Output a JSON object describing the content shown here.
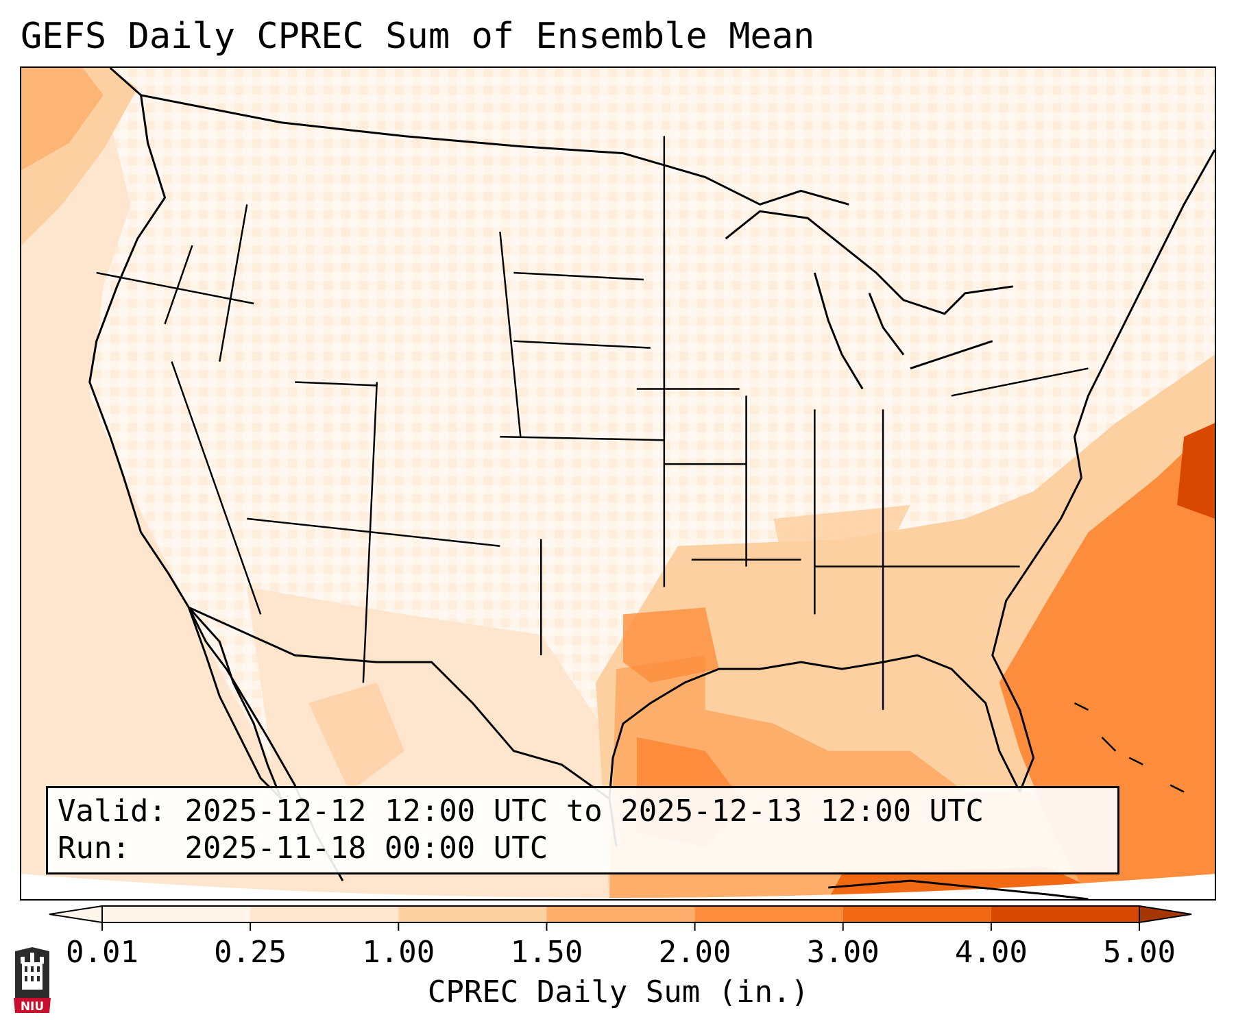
{
  "title": "GEFS Daily CPREC Sum of Ensemble Mean",
  "info": {
    "valid_label": "Valid:",
    "valid_value": "2025-12-12 12:00 UTC to 2025-12-13 12:00 UTC",
    "run_label": "Run:",
    "run_value": "2025-11-18 00:00 UTC"
  },
  "colorbar": {
    "label": "CPREC Daily Sum (in.)",
    "ticks": [
      "0.01",
      "0.25",
      "1.00",
      "1.50",
      "2.00",
      "3.00",
      "4.00",
      "5.00"
    ],
    "colors": [
      "#fff5eb",
      "#fee6ce",
      "#fdd0a2",
      "#fdae6b",
      "#fd8d3c",
      "#f16913",
      "#d94801",
      "#a63603"
    ],
    "extend": "both"
  },
  "logo": {
    "text": "NIU",
    "colors": {
      "shield": "#2b2b2b",
      "banner": "#c8102e",
      "building": "#ffffff"
    }
  },
  "map": {
    "projection": "lambert-conformal",
    "region": "Continental United States, southern Canada, northern Mexico, Gulf of Mexico, western Atlantic, Bahamas and Cuba",
    "field": "CPREC daily sum ensemble mean",
    "overlays": [
      "coastlines",
      "national-borders",
      "state-borders"
    ],
    "max_region": "Gulf of Mexico and western Atlantic off the Southeast US coast",
    "colors": {
      "background": "#ffffff",
      "boundary": "#000000"
    }
  }
}
